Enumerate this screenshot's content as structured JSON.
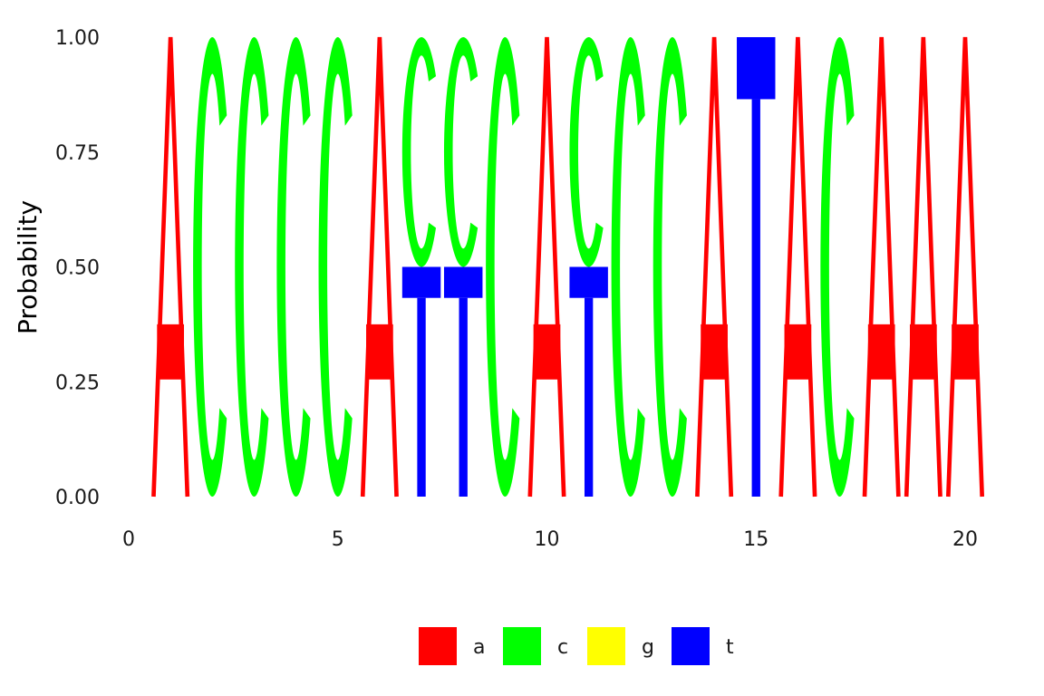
{
  "chart_data": {
    "type": "sequence-logo",
    "title": "",
    "xlabel": "",
    "ylabel": "Probability",
    "xlim": [
      0,
      21
    ],
    "ylim": [
      0,
      1
    ],
    "x_ticks": [
      0,
      5,
      10,
      15,
      20
    ],
    "x_tick_labels": [
      "0",
      "5",
      "10",
      "15",
      "20"
    ],
    "y_ticks": [
      0,
      0.25,
      0.5,
      0.75,
      1
    ],
    "y_tick_labels": [
      "0.00",
      "0.25",
      "0.50",
      "0.75",
      "1.00"
    ],
    "grid": false,
    "legend_position": "bottom",
    "letters": [
      "a",
      "c",
      "g",
      "t"
    ],
    "colors": {
      "a": "#ff0000",
      "c": "#00ff00",
      "g": "#ffff00",
      "t": "#0000ff"
    },
    "positions": [
      {
        "pos": 1,
        "stack": [
          {
            "letter": "a",
            "prob": 1.0
          }
        ]
      },
      {
        "pos": 2,
        "stack": [
          {
            "letter": "c",
            "prob": 1.0
          }
        ]
      },
      {
        "pos": 3,
        "stack": [
          {
            "letter": "c",
            "prob": 1.0
          }
        ]
      },
      {
        "pos": 4,
        "stack": [
          {
            "letter": "c",
            "prob": 1.0
          }
        ]
      },
      {
        "pos": 5,
        "stack": [
          {
            "letter": "c",
            "prob": 1.0
          }
        ]
      },
      {
        "pos": 6,
        "stack": [
          {
            "letter": "a",
            "prob": 1.0
          }
        ]
      },
      {
        "pos": 7,
        "stack": [
          {
            "letter": "t",
            "prob": 0.5
          },
          {
            "letter": "c",
            "prob": 0.5
          }
        ]
      },
      {
        "pos": 8,
        "stack": [
          {
            "letter": "t",
            "prob": 0.5
          },
          {
            "letter": "c",
            "prob": 0.5
          }
        ]
      },
      {
        "pos": 9,
        "stack": [
          {
            "letter": "c",
            "prob": 1.0
          }
        ]
      },
      {
        "pos": 10,
        "stack": [
          {
            "letter": "a",
            "prob": 1.0
          }
        ]
      },
      {
        "pos": 11,
        "stack": [
          {
            "letter": "t",
            "prob": 0.5
          },
          {
            "letter": "c",
            "prob": 0.5
          }
        ]
      },
      {
        "pos": 12,
        "stack": [
          {
            "letter": "c",
            "prob": 1.0
          }
        ]
      },
      {
        "pos": 13,
        "stack": [
          {
            "letter": "c",
            "prob": 1.0
          }
        ]
      },
      {
        "pos": 14,
        "stack": [
          {
            "letter": "a",
            "prob": 1.0
          }
        ]
      },
      {
        "pos": 15,
        "stack": [
          {
            "letter": "t",
            "prob": 1.0
          }
        ]
      },
      {
        "pos": 16,
        "stack": [
          {
            "letter": "a",
            "prob": 1.0
          }
        ]
      },
      {
        "pos": 17,
        "stack": [
          {
            "letter": "c",
            "prob": 1.0
          }
        ]
      },
      {
        "pos": 18,
        "stack": [
          {
            "letter": "a",
            "prob": 1.0
          }
        ]
      },
      {
        "pos": 19,
        "stack": [
          {
            "letter": "a",
            "prob": 1.0
          }
        ]
      },
      {
        "pos": 20,
        "stack": [
          {
            "letter": "a",
            "prob": 1.0
          }
        ]
      }
    ]
  }
}
